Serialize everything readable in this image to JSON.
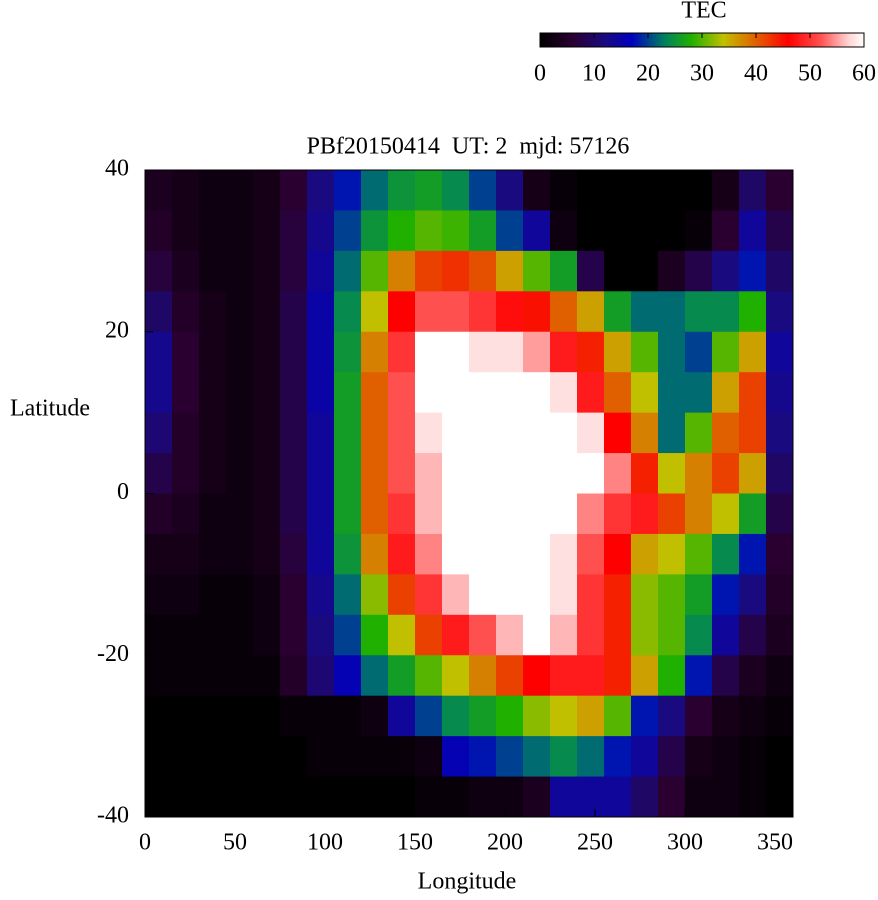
{
  "chart_data": {
    "type": "heatmap",
    "title": "PBf20150414  UT: 2  mjd: 57126",
    "x_label": "Longitude",
    "y_label": "Latitude",
    "xlim": [
      0,
      360
    ],
    "xticks": [
      0,
      50,
      100,
      150,
      200,
      250,
      300,
      350
    ],
    "ylim": [
      -40,
      40
    ],
    "yticks": [
      -40,
      -20,
      0,
      20,
      40
    ],
    "colorbar": {
      "title": "TEC",
      "clim": [
        0,
        60
      ],
      "ticks": [
        0,
        10,
        20,
        30,
        40,
        50,
        60
      ]
    },
    "colormap": [
      {
        "value": 0,
        "color": "#000000"
      },
      {
        "value": 6,
        "color": "#2a0030"
      },
      {
        "value": 12,
        "color": "#1a0a80"
      },
      {
        "value": 17,
        "color": "#0000c0"
      },
      {
        "value": 23,
        "color": "#008060"
      },
      {
        "value": 28,
        "color": "#20b000"
      },
      {
        "value": 34,
        "color": "#c0c000"
      },
      {
        "value": 40,
        "color": "#e06000"
      },
      {
        "value": 46,
        "color": "#ff0000"
      },
      {
        "value": 52,
        "color": "#ff5050"
      },
      {
        "value": 57,
        "color": "#ffd0d0"
      },
      {
        "value": 60,
        "color": "#ffffff"
      }
    ],
    "x": [
      7.5,
      22.5,
      37.5,
      52.5,
      67.5,
      82.5,
      97.5,
      112.5,
      127.5,
      142.5,
      157.5,
      172.5,
      187.5,
      202.5,
      217.5,
      232.5,
      247.5,
      262.5,
      277.5,
      292.5,
      307.5,
      322.5,
      337.5,
      352.5
    ],
    "y": [
      37.5,
      32.5,
      27.5,
      22.5,
      17.5,
      12.5,
      7.5,
      2.5,
      -2.5,
      -7.5,
      -12.5,
      -17.5,
      -22.5,
      -27.5,
      -32.5,
      -37.5
    ],
    "z": [
      [
        4,
        3,
        2,
        2,
        3,
        6,
        12,
        18,
        22,
        25,
        26,
        24,
        20,
        12,
        3,
        1,
        0,
        0,
        0,
        0,
        0,
        3,
        10,
        6
      ],
      [
        5,
        3,
        2,
        2,
        3,
        7,
        13,
        20,
        25,
        28,
        30,
        29,
        26,
        20,
        14,
        2,
        0,
        0,
        0,
        0,
        1,
        6,
        14,
        8
      ],
      [
        7,
        4,
        2,
        2,
        3,
        7,
        14,
        22,
        30,
        38,
        42,
        43,
        41,
        36,
        30,
        26,
        8,
        0,
        0,
        4,
        8,
        12,
        18,
        10
      ],
      [
        10,
        5,
        3,
        2,
        3,
        8,
        15,
        24,
        34,
        46,
        52,
        52,
        50,
        47,
        45,
        40,
        36,
        26,
        22,
        22,
        24,
        24,
        28,
        12
      ],
      [
        13,
        6,
        3,
        2,
        3,
        8,
        15,
        25,
        38,
        50,
        60,
        60,
        58,
        58,
        55,
        48,
        44,
        36,
        30,
        22,
        20,
        30,
        36,
        14
      ],
      [
        13,
        6,
        3,
        2,
        3,
        8,
        15,
        26,
        40,
        52,
        60,
        60,
        60,
        60,
        60,
        58,
        48,
        40,
        34,
        22,
        22,
        36,
        42,
        13
      ],
      [
        11,
        5,
        3,
        2,
        3,
        8,
        14,
        26,
        40,
        52,
        58,
        60,
        60,
        60,
        60,
        60,
        58,
        46,
        38,
        22,
        30,
        40,
        42,
        12
      ],
      [
        8,
        5,
        3,
        2,
        3,
        8,
        14,
        26,
        40,
        52,
        56,
        60,
        60,
        60,
        60,
        60,
        60,
        54,
        44,
        34,
        38,
        42,
        36,
        10
      ],
      [
        5,
        4,
        2,
        2,
        3,
        8,
        14,
        26,
        40,
        50,
        56,
        60,
        60,
        60,
        60,
        60,
        54,
        50,
        48,
        42,
        38,
        34,
        26,
        8
      ],
      [
        3,
        3,
        2,
        2,
        3,
        7,
        14,
        25,
        38,
        48,
        54,
        60,
        60,
        60,
        60,
        58,
        52,
        46,
        36,
        34,
        30,
        24,
        18,
        6
      ],
      [
        2,
        2,
        1,
        1,
        2,
        6,
        13,
        22,
        32,
        42,
        50,
        56,
        60,
        60,
        60,
        58,
        50,
        44,
        32,
        30,
        26,
        18,
        12,
        5
      ],
      [
        1,
        1,
        1,
        1,
        2,
        6,
        12,
        20,
        28,
        34,
        42,
        48,
        52,
        56,
        60,
        56,
        50,
        44,
        32,
        30,
        24,
        14,
        8,
        4
      ],
      [
        1,
        1,
        1,
        1,
        1,
        5,
        11,
        16,
        22,
        26,
        30,
        34,
        38,
        42,
        46,
        48,
        48,
        44,
        36,
        28,
        18,
        8,
        4,
        2
      ],
      [
        0,
        0,
        0,
        0,
        0,
        1,
        1,
        1,
        2,
        14,
        20,
        24,
        26,
        28,
        32,
        34,
        36,
        30,
        18,
        12,
        6,
        3,
        2,
        1
      ],
      [
        0,
        0,
        0,
        0,
        0,
        0,
        1,
        1,
        1,
        1,
        2,
        16,
        18,
        20,
        22,
        24,
        22,
        18,
        14,
        8,
        3,
        2,
        1,
        0
      ],
      [
        0,
        0,
        0,
        0,
        0,
        0,
        0,
        0,
        0,
        0,
        1,
        1,
        2,
        2,
        4,
        14,
        14,
        14,
        10,
        6,
        2,
        2,
        1,
        0
      ]
    ]
  }
}
